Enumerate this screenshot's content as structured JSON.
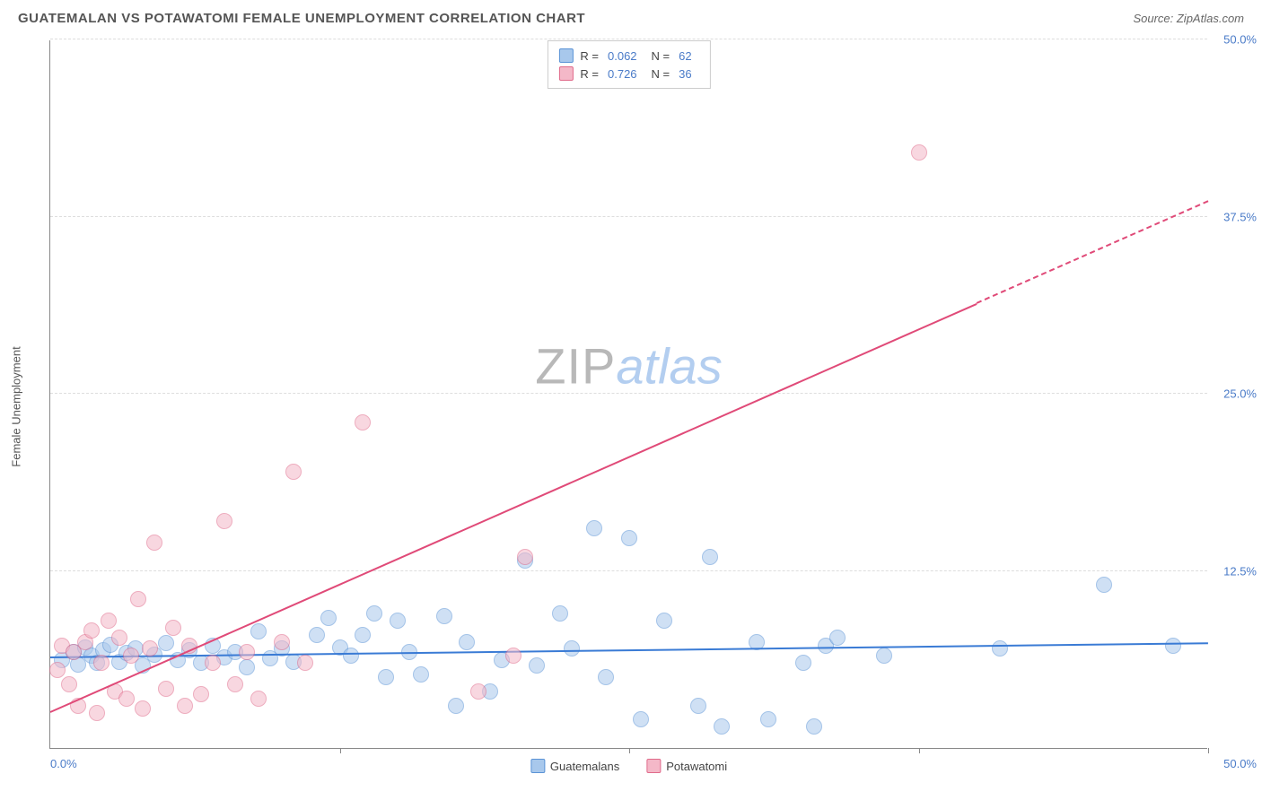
{
  "title": "GUATEMALAN VS POTAWATOMI FEMALE UNEMPLOYMENT CORRELATION CHART",
  "source": "Source: ZipAtlas.com",
  "y_axis_label": "Female Unemployment",
  "watermark": {
    "part1": "ZIP",
    "part2": "atlas"
  },
  "chart": {
    "type": "scatter",
    "xlim": [
      0,
      50
    ],
    "ylim": [
      0,
      50
    ],
    "y_ticks": [
      12.5,
      25.0,
      37.5,
      50.0
    ],
    "y_tick_labels": [
      "12.5%",
      "25.0%",
      "37.5%",
      "50.0%"
    ],
    "x_ticks": [
      12.5,
      25.0,
      37.5,
      50.0
    ],
    "x_axis_start_label": "0.0%",
    "x_axis_end_label": "50.0%",
    "background_color": "#ffffff",
    "grid_color": "#dddddd",
    "marker_radius": 9,
    "marker_stroke_width": 1
  },
  "series": [
    {
      "name": "Guatemalans",
      "color_fill": "#a8c8ec",
      "color_stroke": "#5a93d6",
      "fill_opacity": 0.55,
      "R": "0.062",
      "N": "62",
      "trend": {
        "x1": 0,
        "y1": 6.3,
        "x2": 50,
        "y2": 7.3,
        "color": "#3a7bd5",
        "dash_from_x": 50
      },
      "points": [
        [
          0.5,
          6.2
        ],
        [
          1.0,
          6.8
        ],
        [
          1.2,
          5.9
        ],
        [
          1.5,
          7.1
        ],
        [
          1.8,
          6.5
        ],
        [
          2.0,
          6.0
        ],
        [
          2.3,
          6.9
        ],
        [
          2.6,
          7.3
        ],
        [
          3.0,
          6.1
        ],
        [
          3.3,
          6.7
        ],
        [
          3.7,
          7.0
        ],
        [
          4.0,
          5.8
        ],
        [
          4.5,
          6.6
        ],
        [
          5.0,
          7.4
        ],
        [
          5.5,
          6.2
        ],
        [
          6.0,
          6.9
        ],
        [
          6.5,
          6.0
        ],
        [
          7.0,
          7.2
        ],
        [
          7.5,
          6.4
        ],
        [
          8.0,
          6.8
        ],
        [
          8.5,
          5.7
        ],
        [
          9.0,
          8.2
        ],
        [
          9.5,
          6.3
        ],
        [
          10.0,
          7.0
        ],
        [
          10.5,
          6.1
        ],
        [
          11.5,
          8.0
        ],
        [
          12.0,
          9.2
        ],
        [
          12.5,
          7.1
        ],
        [
          13.0,
          6.5
        ],
        [
          13.5,
          8.0
        ],
        [
          14.0,
          9.5
        ],
        [
          14.5,
          5.0
        ],
        [
          15.0,
          9.0
        ],
        [
          15.5,
          6.8
        ],
        [
          16.0,
          5.2
        ],
        [
          17.0,
          9.3
        ],
        [
          17.5,
          3.0
        ],
        [
          18.0,
          7.5
        ],
        [
          19.0,
          4.0
        ],
        [
          19.5,
          6.2
        ],
        [
          20.5,
          13.2
        ],
        [
          21.0,
          5.8
        ],
        [
          22.0,
          9.5
        ],
        [
          22.5,
          7.0
        ],
        [
          23.5,
          15.5
        ],
        [
          24.0,
          5.0
        ],
        [
          25.0,
          14.8
        ],
        [
          25.5,
          2.0
        ],
        [
          26.5,
          9.0
        ],
        [
          28.0,
          3.0
        ],
        [
          28.5,
          13.5
        ],
        [
          29.0,
          1.5
        ],
        [
          30.5,
          7.5
        ],
        [
          31.0,
          2.0
        ],
        [
          32.5,
          6.0
        ],
        [
          33.0,
          1.5
        ],
        [
          33.5,
          7.2
        ],
        [
          34.0,
          7.8
        ],
        [
          36.0,
          6.5
        ],
        [
          41.0,
          7.0
        ],
        [
          45.5,
          11.5
        ],
        [
          48.5,
          7.2
        ]
      ]
    },
    {
      "name": "Potawatomi",
      "color_fill": "#f4b8c8",
      "color_stroke": "#e06a8a",
      "fill_opacity": 0.55,
      "R": "0.726",
      "N": "36",
      "trend": {
        "x1": 0,
        "y1": 2.5,
        "x2": 50,
        "y2": 38.5,
        "color": "#e04a78",
        "dash_from_x": 40
      },
      "points": [
        [
          0.3,
          5.5
        ],
        [
          0.5,
          7.2
        ],
        [
          0.8,
          4.5
        ],
        [
          1.0,
          6.8
        ],
        [
          1.2,
          3.0
        ],
        [
          1.5,
          7.5
        ],
        [
          1.8,
          8.3
        ],
        [
          2.0,
          2.5
        ],
        [
          2.2,
          6.0
        ],
        [
          2.5,
          9.0
        ],
        [
          2.8,
          4.0
        ],
        [
          3.0,
          7.8
        ],
        [
          3.3,
          3.5
        ],
        [
          3.5,
          6.5
        ],
        [
          3.8,
          10.5
        ],
        [
          4.0,
          2.8
        ],
        [
          4.3,
          7.0
        ],
        [
          4.5,
          14.5
        ],
        [
          5.0,
          4.2
        ],
        [
          5.3,
          8.5
        ],
        [
          5.8,
          3.0
        ],
        [
          6.0,
          7.2
        ],
        [
          6.5,
          3.8
        ],
        [
          7.0,
          6.0
        ],
        [
          7.5,
          16.0
        ],
        [
          8.0,
          4.5
        ],
        [
          8.5,
          6.8
        ],
        [
          9.0,
          3.5
        ],
        [
          10.0,
          7.5
        ],
        [
          10.5,
          19.5
        ],
        [
          11.0,
          6.0
        ],
        [
          13.5,
          23.0
        ],
        [
          18.5,
          4.0
        ],
        [
          20.0,
          6.5
        ],
        [
          20.5,
          13.5
        ],
        [
          37.5,
          42.0
        ]
      ]
    }
  ],
  "stats_legend_labels": {
    "R": "R =",
    "N": "N ="
  },
  "bottom_legend": [
    "Guatemalans",
    "Potawatomi"
  ]
}
